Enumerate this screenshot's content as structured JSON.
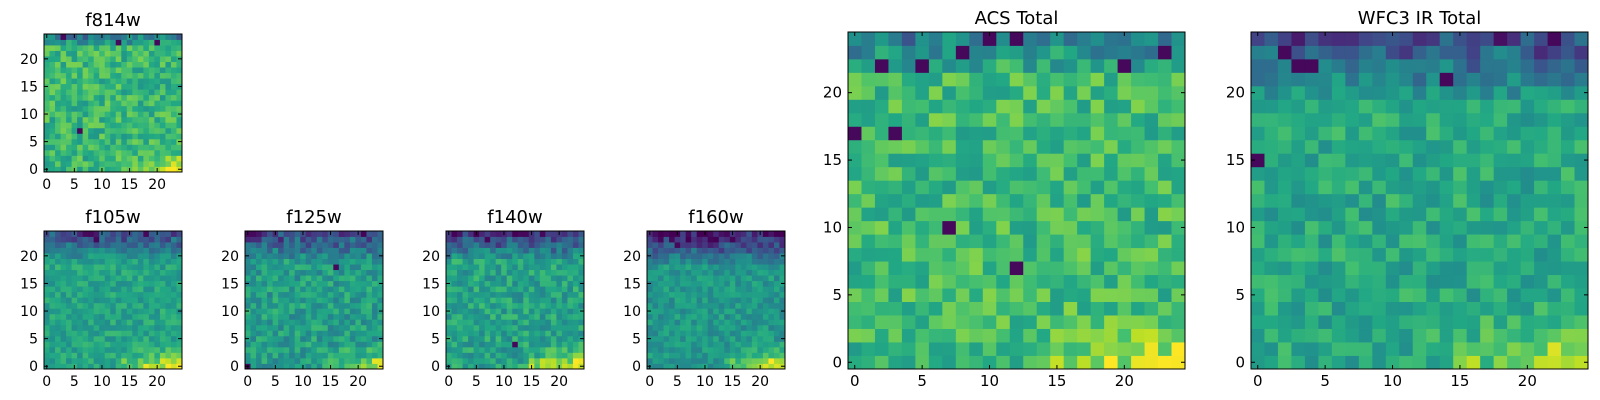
{
  "figure": {
    "description_colormap": "viridis"
  },
  "chart_data": [
    {
      "id": "f814w",
      "type": "heatmap",
      "title": "f814w",
      "grid_size": 25,
      "xlim": [
        0,
        25
      ],
      "ylim": [
        0,
        25
      ],
      "xticks": [
        "0",
        "5",
        "10",
        "15",
        "20"
      ],
      "yticks": [
        "0",
        "5",
        "10",
        "15",
        "20"
      ],
      "value_range": [
        0,
        1
      ],
      "pattern": {
        "base": 0.66,
        "top_dark": 0.28,
        "top_rows": 2,
        "corner_bright": 0.22,
        "noise": 0.14,
        "seed": 11,
        "dark_spots": [
          [
            6,
            7
          ],
          [
            3,
            24
          ],
          [
            20,
            23
          ],
          [
            13,
            23
          ]
        ]
      }
    },
    {
      "id": "f105w",
      "type": "heatmap",
      "title": "f105w",
      "grid_size": 25,
      "xlim": [
        0,
        25
      ],
      "ylim": [
        0,
        25
      ],
      "xticks": [
        "0",
        "5",
        "10",
        "15",
        "20"
      ],
      "yticks": [
        "0",
        "5",
        "10",
        "15",
        "20"
      ],
      "value_range": [
        0,
        1
      ],
      "pattern": {
        "base": 0.58,
        "top_dark": 0.45,
        "top_rows": 5,
        "corner_bright": 0.32,
        "noise": 0.1,
        "seed": 23,
        "dark_spots": [
          [
            8,
            24
          ],
          [
            9,
            23
          ],
          [
            18,
            24
          ]
        ]
      }
    },
    {
      "id": "f125w",
      "type": "heatmap",
      "title": "f125w",
      "grid_size": 25,
      "xlim": [
        0,
        25
      ],
      "ylim": [
        0,
        25
      ],
      "xticks": [
        "0",
        "5",
        "10",
        "15",
        "20"
      ],
      "yticks": [
        "0",
        "5",
        "10",
        "15",
        "20"
      ],
      "value_range": [
        0,
        1
      ],
      "pattern": {
        "base": 0.55,
        "top_dark": 0.42,
        "top_rows": 5,
        "corner_bright": 0.25,
        "noise": 0.13,
        "seed": 37,
        "dark_spots": [
          [
            0,
            0
          ],
          [
            0,
            24
          ],
          [
            1,
            24
          ],
          [
            16,
            18
          ]
        ]
      }
    },
    {
      "id": "f140w",
      "type": "heatmap",
      "title": "f140w",
      "grid_size": 25,
      "xlim": [
        0,
        25
      ],
      "ylim": [
        0,
        25
      ],
      "xticks": [
        "0",
        "5",
        "10",
        "15",
        "20"
      ],
      "yticks": [
        "0",
        "5",
        "10",
        "15",
        "20"
      ],
      "value_range": [
        0,
        1
      ],
      "pattern": {
        "base": 0.57,
        "top_dark": 0.5,
        "top_rows": 5,
        "corner_bright": 0.3,
        "noise": 0.13,
        "seed": 41,
        "dark_spots": [
          [
            12,
            4
          ],
          [
            13,
            24
          ],
          [
            14,
            24
          ],
          [
            17,
            24
          ]
        ]
      }
    },
    {
      "id": "f160w",
      "type": "heatmap",
      "title": "f160w",
      "grid_size": 25,
      "xlim": [
        0,
        25
      ],
      "ylim": [
        0,
        25
      ],
      "xticks": [
        "0",
        "5",
        "10",
        "15",
        "20"
      ],
      "yticks": [
        "0",
        "5",
        "10",
        "15",
        "20"
      ],
      "value_range": [
        0,
        1
      ],
      "pattern": {
        "base": 0.53,
        "top_dark": 0.55,
        "top_rows": 6,
        "corner_bright": 0.35,
        "noise": 0.1,
        "seed": 53,
        "dark_spots": [
          [
            3,
            24
          ],
          [
            4,
            23
          ],
          [
            2,
            23
          ],
          [
            5,
            22
          ]
        ]
      }
    },
    {
      "id": "acs-total",
      "type": "heatmap",
      "title": "ACS Total",
      "grid_size": 25,
      "xlim": [
        0,
        25
      ],
      "ylim": [
        0,
        25
      ],
      "xticks": [
        "0",
        "5",
        "10",
        "15",
        "20"
      ],
      "yticks": [
        "0",
        "5",
        "10",
        "15",
        "20"
      ],
      "value_range": [
        0,
        1
      ],
      "pattern": {
        "base": 0.68,
        "top_dark": 0.3,
        "top_rows": 3,
        "corner_bright": 0.22,
        "noise": 0.14,
        "seed": 67,
        "dark_spots": [
          [
            10,
            24
          ],
          [
            12,
            24
          ],
          [
            8,
            23
          ],
          [
            23,
            23
          ],
          [
            2,
            22
          ],
          [
            0,
            17
          ],
          [
            3,
            17
          ],
          [
            7,
            10
          ],
          [
            12,
            7
          ],
          [
            5,
            22
          ],
          [
            20,
            22
          ]
        ]
      }
    },
    {
      "id": "wfc3-ir-total",
      "type": "heatmap",
      "title": "WFC3 IR Total",
      "grid_size": 25,
      "xlim": [
        0,
        25
      ],
      "ylim": [
        0,
        25
      ],
      "xticks": [
        "0",
        "5",
        "10",
        "15",
        "20"
      ],
      "yticks": [
        "0",
        "5",
        "10",
        "15",
        "20"
      ],
      "value_range": [
        0,
        1
      ],
      "pattern": {
        "base": 0.6,
        "top_dark": 0.45,
        "top_rows": 5,
        "corner_bright": 0.25,
        "noise": 0.12,
        "seed": 79,
        "dark_spots": [
          [
            22,
            24
          ],
          [
            3,
            22
          ],
          [
            4,
            22
          ],
          [
            2,
            23
          ],
          [
            0,
            15
          ],
          [
            14,
            21
          ]
        ]
      }
    }
  ]
}
